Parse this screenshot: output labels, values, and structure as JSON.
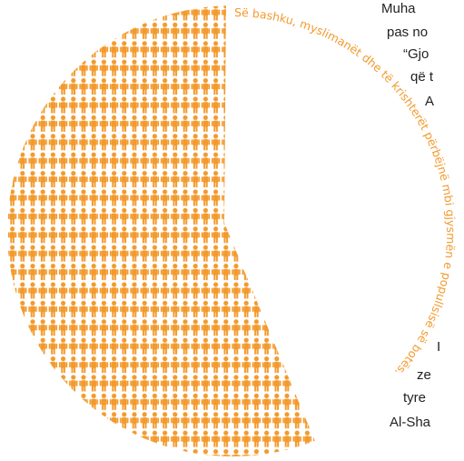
{
  "caption": "Së bashku, myslimanët dhe të krishterët përbëjnë mbi gjysmën e popullsisë së botës.",
  "side_text": [
    "Muha",
    "pas no",
    "“Gjo",
    "që t",
    "A",
    "I",
    "ze",
    "tyre",
    "Al-Sha"
  ]
}
